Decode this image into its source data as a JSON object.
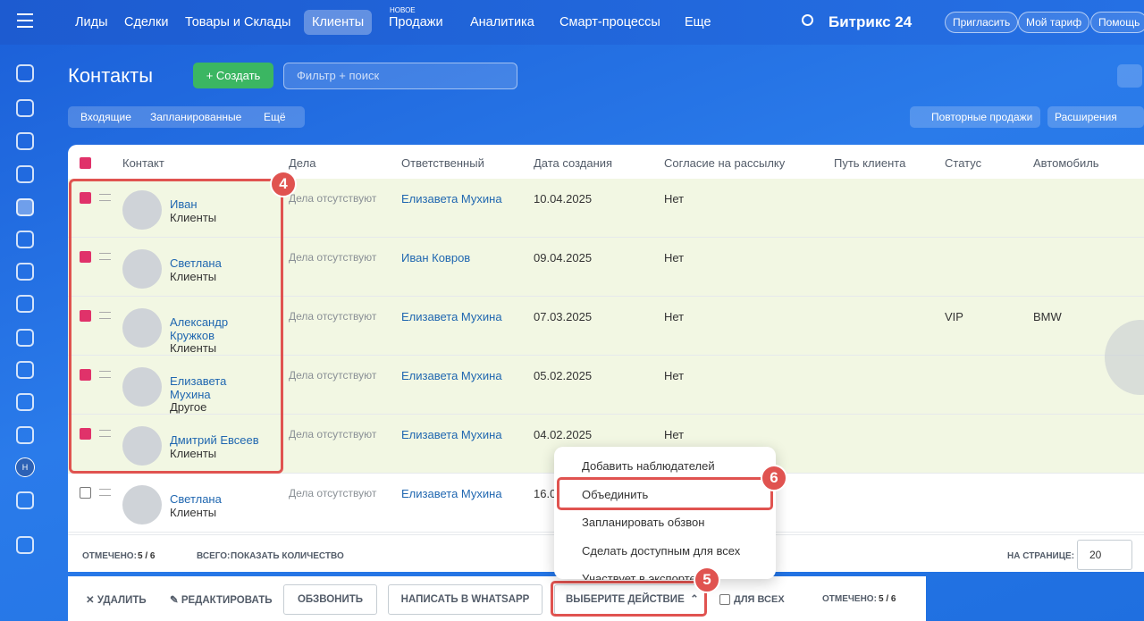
{
  "topbar": {
    "nav": [
      "Лиды",
      "Сделки",
      "Товары и Склады",
      "Клиенты",
      "Продажи",
      "Аналитика",
      "Смарт-процессы",
      "Еще"
    ],
    "new_badge": "НОВОЕ",
    "brand": "Битрикс 24",
    "buttons": [
      "Пригласить",
      "Мой тариф",
      "Помощь"
    ]
  },
  "sidebar": {
    "avatar": "Н"
  },
  "header": {
    "title": "Контакты",
    "create": "Создать",
    "search": "Фильтр + поиск",
    "tabs": [
      "Входящие",
      "Запланированные",
      "Ещё"
    ],
    "repeat_sales": "Повторные продажи",
    "extensions": "Расширения"
  },
  "table": {
    "columns": [
      "Контакт",
      "Дела",
      "Ответственный",
      "Дата создания",
      "Согласие на рассылку",
      "Путь клиента",
      "Статус",
      "Автомобиль"
    ],
    "rows": [
      {
        "name": "Иван",
        "type": "Клиенты",
        "deals": "Дела отсутствуют",
        "responsible": "Елизавета Мухина",
        "date": "10.04.2025",
        "consent": "Нет",
        "checked": true
      },
      {
        "name": "Светлана",
        "type": "Клиенты",
        "deals": "Дела отсутствуют",
        "responsible": "Иван Ковров",
        "date": "09.04.2025",
        "consent": "Нет",
        "checked": true
      },
      {
        "name": "Александр Кружков",
        "type": "Клиенты",
        "deals": "Дела отсутствуют",
        "responsible": "Елизавета Мухина",
        "date": "07.03.2025",
        "consent": "Нет",
        "status": "VIP",
        "car": "BMW",
        "checked": true
      },
      {
        "name": "Елизавета Мухина",
        "type": "Другое",
        "deals": "Дела отсутствуют",
        "responsible": "Елизавета Мухина",
        "date": "05.02.2025",
        "consent": "Нет",
        "checked": true
      },
      {
        "name": "Дмитрий Евсеев",
        "type": "Клиенты",
        "deals": "Дела отсутствуют",
        "responsible": "Елизавета Мухина",
        "date": "04.02.2025",
        "consent": "Нет",
        "checked": true
      },
      {
        "name": "Светлана",
        "type": "Клиенты",
        "deals": "Дела отсутствуют",
        "responsible": "Елизавета Мухина",
        "date": "16.0",
        "checked": false
      }
    ]
  },
  "footer": {
    "selected_label": "ОТМЕЧЕНО:",
    "selected": "5 / 6",
    "total_label": "ВСЕГО:",
    "total_link": "ПОКАЗАТЬ КОЛИЧЕСТВО",
    "per_page_label": "НА СТРАНИЦЕ:",
    "per_page": "20"
  },
  "actions": {
    "delete": "УДАЛИТЬ",
    "edit": "РЕДАКТИРОВАТЬ",
    "call": "ОБЗВОНИТЬ",
    "whatsapp": "НАПИСАТЬ В WHATSAPP",
    "choose": "ВЫБЕРИТЕ ДЕЙСТВИЕ",
    "for_all": "ДЛЯ ВСЕХ",
    "selected_label": "ОТМЕЧЕНО:",
    "selected": "5 / 6"
  },
  "menu": {
    "items": [
      "Добавить наблюдателей",
      "Объединить",
      "Запланировать обзвон",
      "Сделать доступным для всех",
      "Участвует в экспорте"
    ]
  },
  "callouts": [
    "4",
    "5",
    "6"
  ]
}
